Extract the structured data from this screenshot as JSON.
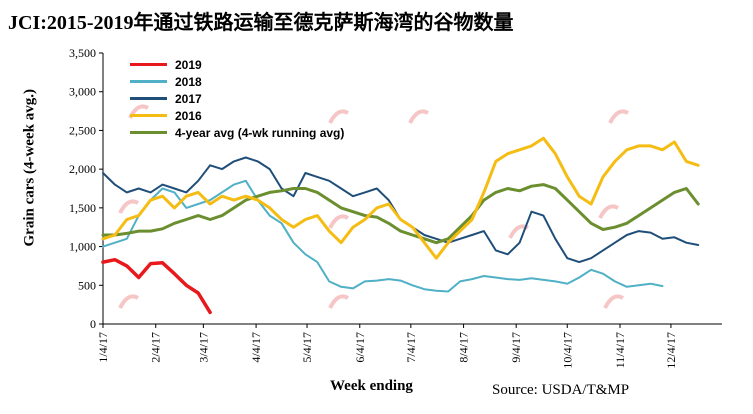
{
  "title": "JCI:2015-2019年通过铁路运输至德克萨斯海湾的谷物数量",
  "source": "Source: USDA/T&MP",
  "colors": {
    "2019": "#e8191c",
    "2018": "#4fb0c6",
    "2017": "#1f4e79",
    "2016": "#f5bd13",
    "avg": "#6b8e2f"
  },
  "chart_data": {
    "type": "line",
    "xlabel": "Week ending",
    "ylabel": "Grain cars (4-week avg.)",
    "ylim": [
      0,
      3500
    ],
    "yticks": [
      "0",
      "500",
      "1,000",
      "1,500",
      "2,000",
      "2,500",
      "3,000",
      "3,500"
    ],
    "x_ticks": [
      "1/4/17",
      "2/4/17",
      "3/4/17",
      "4/4/17",
      "5/4/17",
      "6/4/17",
      "7/4/17",
      "8/4/17",
      "9/4/17",
      "10/4/17",
      "11/4/17",
      "12/4/17"
    ],
    "x_tick_positions": [
      0,
      4.43,
      8.43,
      12.86,
      17.14,
      21.57,
      25.86,
      30.29,
      34.71,
      39,
      43.43,
      47.71
    ],
    "xlim": [
      0,
      52
    ],
    "grid": false,
    "legend_position": "top-left",
    "series": [
      {
        "name": "2019",
        "key": "2019",
        "width": 3.5,
        "values": [
          800,
          830,
          750,
          600,
          780,
          790,
          650,
          500,
          400,
          150
        ]
      },
      {
        "name": "2018",
        "key": "2018",
        "width": 2,
        "values": [
          1000,
          1050,
          1100,
          1400,
          1600,
          1750,
          1700,
          1500,
          1550,
          1600,
          1700,
          1800,
          1850,
          1600,
          1400,
          1300,
          1050,
          900,
          800,
          550,
          480,
          460,
          550,
          560,
          580,
          560,
          500,
          450,
          430,
          420,
          550,
          580,
          620,
          600,
          580,
          570,
          590,
          570,
          550,
          520,
          600,
          700,
          650,
          550,
          480,
          500,
          520,
          490
        ]
      },
      {
        "name": "2017",
        "key": "2017",
        "width": 2,
        "values": [
          1950,
          1800,
          1700,
          1750,
          1700,
          1800,
          1750,
          1700,
          1850,
          2050,
          2000,
          2100,
          2150,
          2100,
          2000,
          1750,
          1650,
          1950,
          1900,
          1850,
          1750,
          1650,
          1700,
          1750,
          1600,
          1350,
          1250,
          1150,
          1100,
          1050,
          1100,
          1150,
          1200,
          950,
          900,
          1050,
          1450,
          1400,
          1100,
          850,
          800,
          850,
          950,
          1050,
          1150,
          1200,
          1180,
          1100,
          1120,
          1050,
          1020
        ]
      },
      {
        "name": "2016",
        "key": "2016",
        "width": 3,
        "values": [
          1100,
          1150,
          1350,
          1400,
          1600,
          1650,
          1500,
          1650,
          1700,
          1550,
          1650,
          1600,
          1650,
          1600,
          1500,
          1350,
          1250,
          1350,
          1400,
          1200,
          1050,
          1250,
          1350,
          1500,
          1550,
          1350,
          1250,
          1050,
          850,
          1050,
          1200,
          1350,
          1700,
          2100,
          2200,
          2250,
          2300,
          2400,
          2200,
          1900,
          1650,
          1550,
          1900,
          2100,
          2250,
          2300,
          2300,
          2250,
          2350,
          2100,
          2050
        ]
      },
      {
        "name": "4-year avg (4-wk running avg)",
        "key": "avg",
        "width": 3,
        "values": [
          1150,
          1150,
          1170,
          1200,
          1200,
          1230,
          1300,
          1350,
          1400,
          1350,
          1400,
          1500,
          1600,
          1650,
          1700,
          1720,
          1750,
          1750,
          1700,
          1600,
          1500,
          1450,
          1400,
          1380,
          1300,
          1200,
          1150,
          1100,
          1050,
          1100,
          1250,
          1400,
          1600,
          1700,
          1750,
          1720,
          1780,
          1800,
          1750,
          1600,
          1450,
          1300,
          1220,
          1250,
          1300,
          1400,
          1500,
          1600,
          1700,
          1750,
          1550
        ]
      }
    ]
  }
}
